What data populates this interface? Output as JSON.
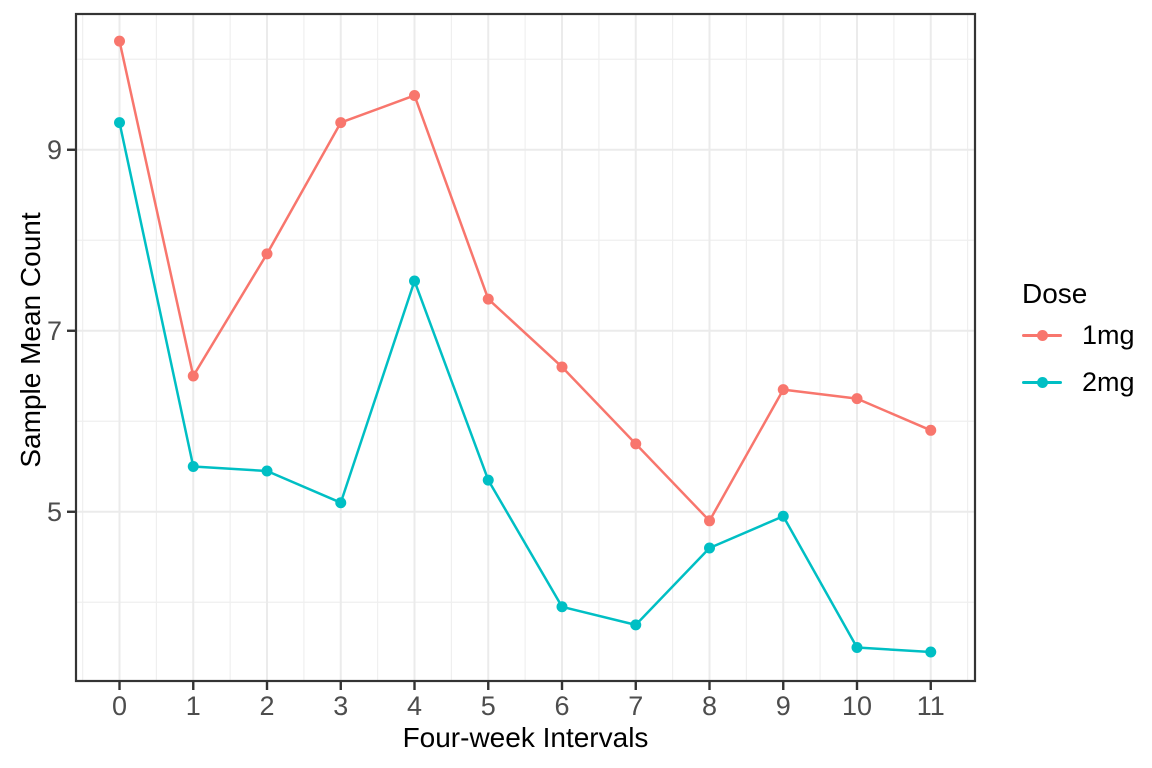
{
  "chart_data": {
    "type": "line",
    "title": "",
    "xlabel": "Four-week Intervals",
    "ylabel": "Sample Mean Count",
    "x": [
      0,
      1,
      2,
      3,
      4,
      5,
      6,
      7,
      8,
      9,
      10,
      11
    ],
    "series": [
      {
        "name": "1mg",
        "color": "#F8766D",
        "values": [
          10.2,
          6.5,
          7.85,
          9.3,
          9.6,
          7.35,
          6.6,
          5.75,
          4.9,
          6.35,
          6.25,
          5.9
        ]
      },
      {
        "name": "2mg",
        "color": "#00BFC4",
        "values": [
          9.3,
          5.5,
          5.45,
          5.1,
          7.55,
          5.35,
          3.95,
          3.75,
          4.6,
          4.95,
          3.5,
          3.45
        ]
      }
    ],
    "x_ticks": [
      0,
      1,
      2,
      3,
      4,
      5,
      6,
      7,
      8,
      9,
      10,
      11
    ],
    "y_ticks": [
      5,
      7,
      9
    ],
    "y_minor_gridlines": [
      4,
      6,
      8,
      10
    ],
    "x_minor_step": 0.5,
    "xlim": [
      -0.59,
      11.6
    ],
    "ylim": [
      3.13,
      10.5
    ],
    "grid": true,
    "legend": {
      "title": "Dose",
      "position": "right"
    },
    "colors": {
      "background": "#FFFFFF",
      "grid_major": "#EBEBEB",
      "grid_minor": "#EFEFEF",
      "panel_border": "#343434",
      "tick_mark": "#333333",
      "tick_label": "#4D4D4D",
      "axis_title": "#000000"
    },
    "point_radius": 5.5,
    "line_width": 2.5
  }
}
